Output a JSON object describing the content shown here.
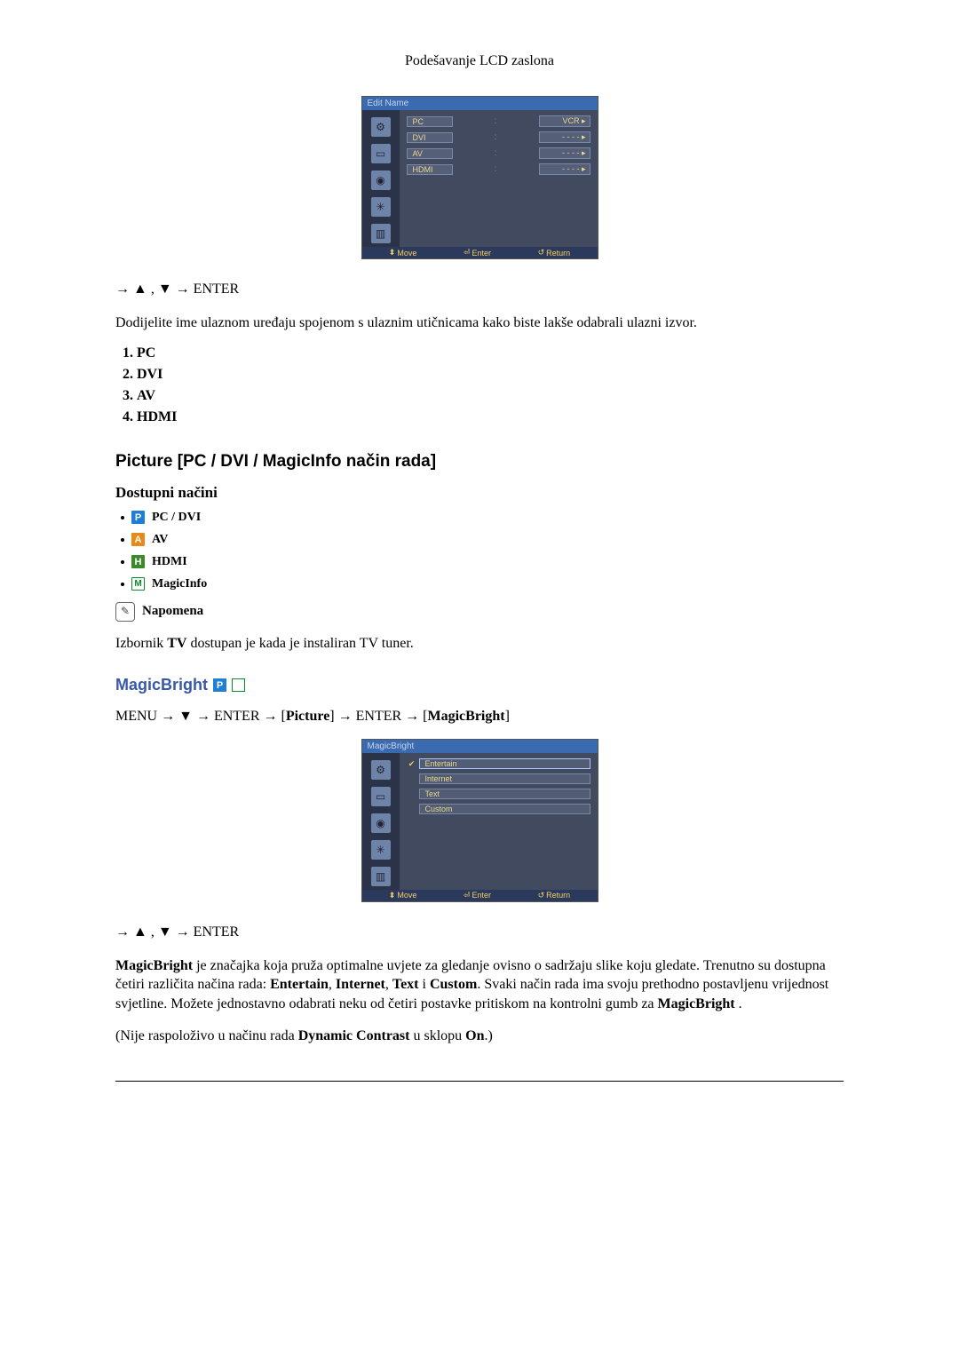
{
  "header": {
    "title": "Podešavanje LCD zaslona"
  },
  "osd1": {
    "title": "Edit Name",
    "rows": [
      {
        "label": "PC",
        "value": "VCR ▸"
      },
      {
        "label": "DVI",
        "value": "- - - - ▸"
      },
      {
        "label": "AV",
        "value": "- - - - ▸"
      },
      {
        "label": "HDMI",
        "value": "- - - - ▸"
      }
    ],
    "footer": {
      "move": "Move",
      "enter": "Enter",
      "return": "Return"
    }
  },
  "nav1": "→ ▲ , ▼ → ENTER",
  "desc1": "Dodijelite ime ulaznom uređaju spojenom s ulaznim utičnicama kako biste lakše odabrali ulazni izvor.",
  "sources": [
    "PC",
    "DVI",
    "AV",
    "HDMI"
  ],
  "section_picture": "Picture [PC / DVI / MagicInfo način rada]",
  "subtitle_modes": "Dostupni načini",
  "modes": [
    {
      "icon": "P",
      "cls": "ic-p",
      "label": "PC / DVI"
    },
    {
      "icon": "A",
      "cls": "ic-a",
      "label": "AV"
    },
    {
      "icon": "H",
      "cls": "ic-h",
      "label": "HDMI"
    },
    {
      "icon": "M",
      "cls": "ic-m",
      "label": "MagicInfo"
    }
  ],
  "note": {
    "label": "Napomena",
    "text_pre": "Izbornik ",
    "text_bold": "TV",
    "text_post": " dostupan je kada je instaliran TV tuner."
  },
  "magicbright": {
    "title": "MagicBright",
    "menu_path": {
      "p1": "MENU → ▼ → ENTER → [",
      "b1": "Picture",
      "p2": "] → ENTER → [",
      "b2": "MagicBright",
      "p3": "]"
    }
  },
  "osd2": {
    "title": "MagicBright",
    "items": [
      {
        "label": "Entertain",
        "selected": true
      },
      {
        "label": "Internet",
        "selected": false
      },
      {
        "label": "Text",
        "selected": false
      },
      {
        "label": "Custom",
        "selected": false
      }
    ],
    "footer": {
      "move": "Move",
      "enter": "Enter",
      "return": "Return"
    }
  },
  "nav2": "→ ▲ , ▼ → ENTER",
  "mb_para": {
    "b1": "MagicBright",
    "t1": " je značajka koja pruža optimalne uvjete za gledanje ovisno o sadržaju slike koju gledate. Trenutno su dostupna četiri različita načina rada: ",
    "b2": "Entertain",
    "c1": ", ",
    "b3": "Internet",
    "c2": ", ",
    "b4": "Text",
    "c3": " i ",
    "b5": "Custom",
    "t2": ". Svaki način rada ima svoju prethodno postavljenu vrijednost svjetline. Možete jednostavno odabrati neku od četiri postavke pritiskom na kontrolni gumb za  ",
    "b6": "MagicBright",
    "t3": " ."
  },
  "mb_note": {
    "p1": "(Nije raspoloživo u načinu rada ",
    "b1": "Dynamic Contrast",
    "p2": " u sklopu ",
    "b2": "On",
    "p3": ".)"
  }
}
